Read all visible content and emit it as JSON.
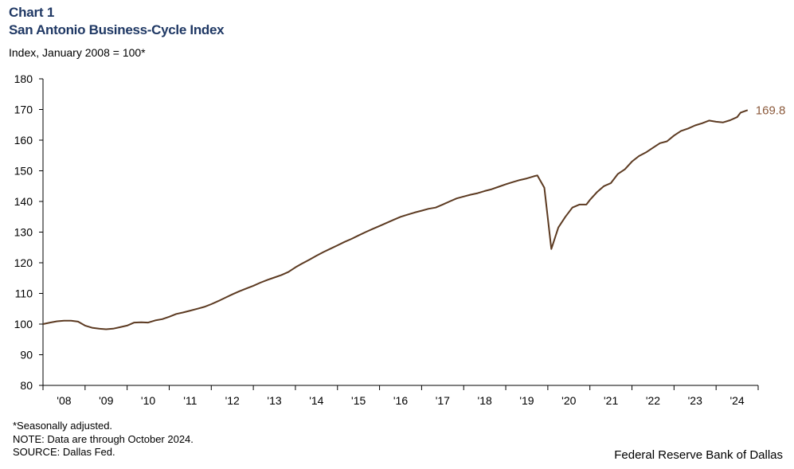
{
  "header": {
    "chart_number": "Chart 1",
    "title": "San Antonio Business-Cycle Index",
    "unit": "Index, January 2008 = 100*"
  },
  "notes": {
    "seasonal": "*Seasonally adjusted.",
    "note": "NOTE: Data are through October 2024.",
    "source": "SOURCE: Dallas Fed."
  },
  "credit": "Federal Reserve Bank of Dallas",
  "chart_data": {
    "type": "line",
    "title": "San Antonio Business-Cycle Index",
    "ylabel": "Index, January 2008 = 100*",
    "xlabel": "",
    "ylim": [
      80,
      180
    ],
    "yticks": [
      80,
      90,
      100,
      110,
      120,
      130,
      140,
      150,
      160,
      170,
      180
    ],
    "xlim": [
      "2008-01",
      "2024-12"
    ],
    "xtick_labels": [
      "'08",
      "'09",
      "'10",
      "'11",
      "'12",
      "'13",
      "'14",
      "'15",
      "'16",
      "'17",
      "'18",
      "'19",
      "'20",
      "'21",
      "'22",
      "'23",
      "'24"
    ],
    "grid": false,
    "line_color": "#5C3A21",
    "end_label": "169.8",
    "series": [
      {
        "points": [
          [
            "2008-01",
            100.0
          ],
          [
            "2008-03",
            100.5
          ],
          [
            "2008-05",
            100.9
          ],
          [
            "2008-07",
            101.1
          ],
          [
            "2008-09",
            101.1
          ],
          [
            "2008-11",
            100.8
          ],
          [
            "2009-01",
            99.5
          ],
          [
            "2009-03",
            98.8
          ],
          [
            "2009-05",
            98.5
          ],
          [
            "2009-07",
            98.3
          ],
          [
            "2009-09",
            98.5
          ],
          [
            "2009-11",
            99.0
          ],
          [
            "2010-01",
            99.5
          ],
          [
            "2010-03",
            100.5
          ],
          [
            "2010-05",
            100.6
          ],
          [
            "2010-07",
            100.5
          ],
          [
            "2010-09",
            101.2
          ],
          [
            "2010-11",
            101.6
          ],
          [
            "2011-01",
            102.4
          ],
          [
            "2011-03",
            103.3
          ],
          [
            "2011-05",
            103.8
          ],
          [
            "2011-07",
            104.4
          ],
          [
            "2011-09",
            105.0
          ],
          [
            "2011-11",
            105.6
          ],
          [
            "2012-01",
            106.5
          ],
          [
            "2012-03",
            107.5
          ],
          [
            "2012-05",
            108.6
          ],
          [
            "2012-07",
            109.7
          ],
          [
            "2012-09",
            110.7
          ],
          [
            "2012-11",
            111.6
          ],
          [
            "2013-01",
            112.5
          ],
          [
            "2013-03",
            113.5
          ],
          [
            "2013-05",
            114.4
          ],
          [
            "2013-07",
            115.2
          ],
          [
            "2013-09",
            116.0
          ],
          [
            "2013-11",
            117.0
          ],
          [
            "2014-01",
            118.5
          ],
          [
            "2014-03",
            119.8
          ],
          [
            "2014-05",
            121.0
          ],
          [
            "2014-07",
            122.3
          ],
          [
            "2014-09",
            123.5
          ],
          [
            "2014-11",
            124.6
          ],
          [
            "2015-01",
            125.7
          ],
          [
            "2015-03",
            126.8
          ],
          [
            "2015-05",
            127.8
          ],
          [
            "2015-07",
            128.9
          ],
          [
            "2015-09",
            130.0
          ],
          [
            "2015-11",
            131.0
          ],
          [
            "2016-01",
            132.0
          ],
          [
            "2016-03",
            133.0
          ],
          [
            "2016-05",
            134.0
          ],
          [
            "2016-07",
            135.0
          ],
          [
            "2016-09",
            135.7
          ],
          [
            "2016-11",
            136.4
          ],
          [
            "2017-01",
            137.0
          ],
          [
            "2017-03",
            137.6
          ],
          [
            "2017-05",
            138.0
          ],
          [
            "2017-07",
            139.0
          ],
          [
            "2017-09",
            140.0
          ],
          [
            "2017-11",
            141.0
          ],
          [
            "2018-01",
            141.6
          ],
          [
            "2018-03",
            142.2
          ],
          [
            "2018-05",
            142.7
          ],
          [
            "2018-07",
            143.4
          ],
          [
            "2018-09",
            144.0
          ],
          [
            "2018-11",
            144.8
          ],
          [
            "2019-01",
            145.6
          ],
          [
            "2019-03",
            146.3
          ],
          [
            "2019-05",
            147.0
          ],
          [
            "2019-07",
            147.5
          ],
          [
            "2019-09",
            148.2
          ],
          [
            "2019-10",
            148.5
          ],
          [
            "2019-12",
            144.5
          ],
          [
            "2020-02",
            124.5
          ],
          [
            "2020-04",
            131.5
          ],
          [
            "2020-06",
            135.0
          ],
          [
            "2020-08",
            138.0
          ],
          [
            "2020-10",
            139.0
          ],
          [
            "2020-12",
            139.0
          ],
          [
            "2021-01",
            140.5
          ],
          [
            "2021-03",
            143.0
          ],
          [
            "2021-05",
            145.0
          ],
          [
            "2021-07",
            146.0
          ],
          [
            "2021-09",
            149.0
          ],
          [
            "2021-11",
            150.5
          ],
          [
            "2022-01",
            153.0
          ],
          [
            "2022-03",
            154.8
          ],
          [
            "2022-05",
            156.0
          ],
          [
            "2022-07",
            157.5
          ],
          [
            "2022-09",
            159.0
          ],
          [
            "2022-11",
            159.6
          ],
          [
            "2023-01",
            161.5
          ],
          [
            "2023-03",
            163.0
          ],
          [
            "2023-05",
            163.8
          ],
          [
            "2023-07",
            164.8
          ],
          [
            "2023-09",
            165.5
          ],
          [
            "2023-11",
            166.4
          ],
          [
            "2024-01",
            166.0
          ],
          [
            "2024-03",
            165.8
          ],
          [
            "2024-05",
            166.5
          ],
          [
            "2024-07",
            167.5
          ],
          [
            "2024-08",
            169.0
          ],
          [
            "2024-10",
            169.8
          ]
        ]
      }
    ]
  }
}
